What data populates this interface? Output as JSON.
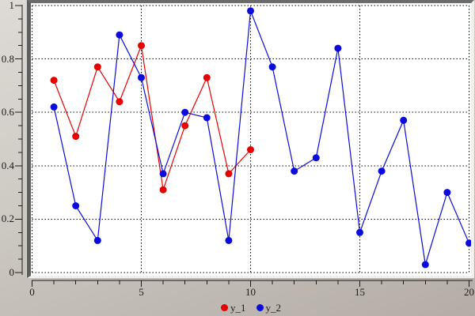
{
  "window": {
    "kind": "graphics-plot-window"
  },
  "chart_data": {
    "type": "line",
    "title": "",
    "xlabel": "",
    "ylabel": "",
    "xlim": [
      0,
      20
    ],
    "ylim": [
      0,
      1
    ],
    "grid": true,
    "grid_style": "dotted",
    "legend_position": "bottom-center",
    "x_ticks": [
      {
        "value": 0,
        "label": "0"
      },
      {
        "value": 5,
        "label": "5"
      },
      {
        "value": 10,
        "label": "10"
      },
      {
        "value": 15,
        "label": "15"
      },
      {
        "value": 20,
        "label": "20"
      }
    ],
    "x_minor_step": 1,
    "y_ticks": [
      {
        "value": 0,
        "label": "0"
      },
      {
        "value": 0.2,
        "label": "0.2"
      },
      {
        "value": 0.4,
        "label": "0.4"
      },
      {
        "value": 0.6,
        "label": "0.6"
      },
      {
        "value": 0.8,
        "label": "0.8"
      },
      {
        "value": 1,
        "label": "1"
      }
    ],
    "y_minor_step": 0.05,
    "series": [
      {
        "name": "y_1",
        "color": "#e60000",
        "marker": "circle",
        "x": [
          1,
          2,
          3,
          4,
          5,
          6,
          7,
          8,
          9,
          10
        ],
        "values": [
          0.72,
          0.51,
          0.77,
          0.64,
          0.85,
          0.31,
          0.55,
          0.73,
          0.37,
          0.46
        ]
      },
      {
        "name": "y_2",
        "color": "#0b0bdd",
        "marker": "circle",
        "x": [
          1,
          2,
          3,
          4,
          5,
          6,
          7,
          8,
          9,
          10,
          11,
          12,
          13,
          14,
          15,
          16,
          17,
          18,
          19,
          20
        ],
        "values": [
          0.62,
          0.25,
          0.12,
          0.89,
          0.73,
          0.37,
          0.6,
          0.58,
          0.12,
          0.98,
          0.77,
          0.38,
          0.43,
          0.84,
          0.15,
          0.38,
          0.57,
          0.03,
          0.3,
          0.11
        ]
      }
    ],
    "grid_color": "#000000",
    "axis_color": "#1c1c1c"
  },
  "legend": {
    "items": [
      {
        "label": "y_1",
        "color": "#e60000"
      },
      {
        "label": "y_2",
        "color": "#0b0bdd"
      }
    ]
  }
}
